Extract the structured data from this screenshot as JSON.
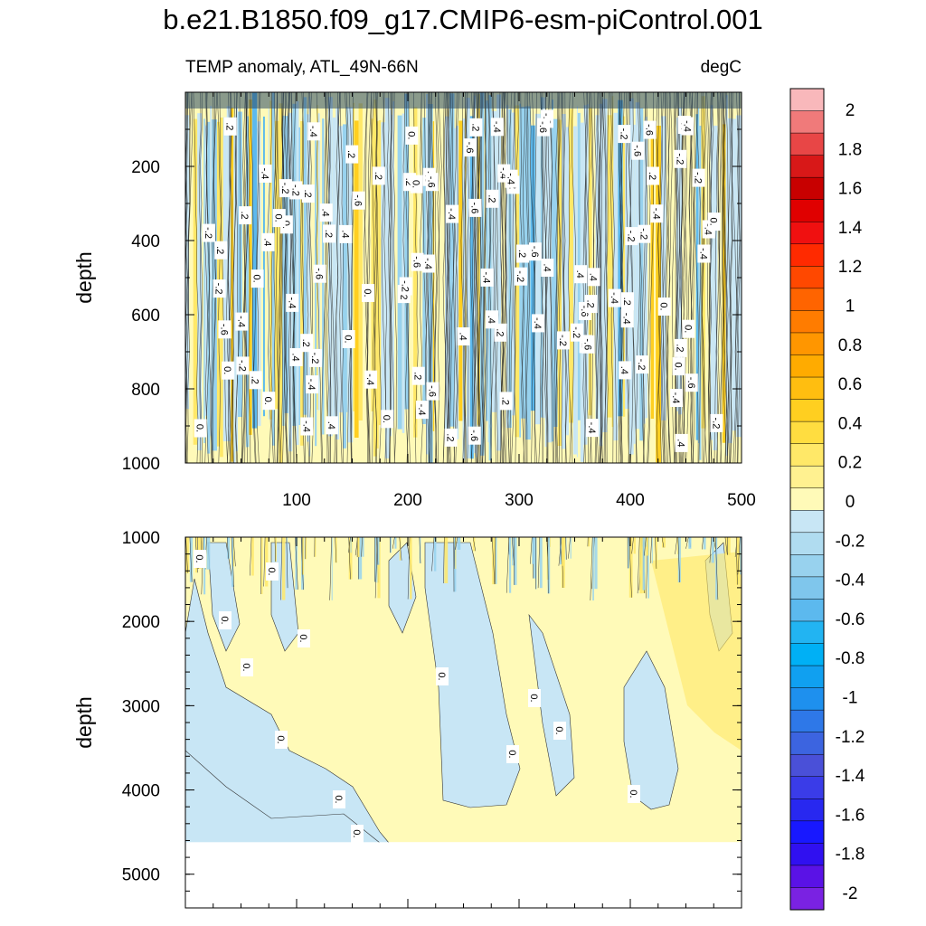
{
  "title": "b.e21.B1850.f09_g17.CMIP6-esm-piControl.001",
  "chart_data": {
    "type": "contour",
    "variable_label": "TEMP anomaly, ATL_49N-66N",
    "units": "degC",
    "ylabel": "depth",
    "xlim": [
      0,
      500
    ],
    "x_ticks": [
      100,
      200,
      300,
      400,
      500
    ],
    "panels": [
      {
        "name": "upper",
        "ylim": [
          0,
          1000
        ],
        "y_ticks": [
          200,
          400,
          600,
          800,
          1000
        ],
        "description_values": "contour labels shown",
        "contour_labels": [
          "-.4",
          "-.2",
          "0.",
          ".2",
          ".4",
          "-.6"
        ]
      },
      {
        "name": "lower",
        "ylim": [
          1000,
          5400
        ],
        "y_ticks": [
          1000,
          2000,
          3000,
          4000,
          5000
        ],
        "contour_labels": [
          "0."
        ]
      }
    ],
    "colorbar": {
      "levels": [
        "2",
        "1.8",
        "1.6",
        "1.4",
        "1.2",
        "1",
        "0.8",
        "0.6",
        "0.4",
        "0.2",
        "0",
        "-0.2",
        "-0.4",
        "-0.6",
        "-0.8",
        "-1",
        "-1.2",
        "-1.4",
        "-1.6",
        "-1.8",
        "-2"
      ],
      "colors": [
        "#f9b8bb",
        "#f07a7a",
        "#e84646",
        "#d81818",
        "#c80000",
        "#e00000",
        "#f01010",
        "#ff2a00",
        "#ff4800",
        "#ff6400",
        "#ff7c00",
        "#ff9600",
        "#ffab00",
        "#ffbe10",
        "#ffcf20",
        "#ffdd40",
        "#ffe868",
        "#fff190",
        "#fffab8",
        "#c8e6f5",
        "#b0dcf0",
        "#98d2ee",
        "#7fc6ec",
        "#5cb9ee",
        "#22b4f2",
        "#00b0f5",
        "#10a0f0",
        "#1e90ee",
        "#2e78e8",
        "#3c64e0",
        "#4a50d8",
        "#3a3ce8",
        "#2828f0",
        "#1818ff",
        "#3010f0",
        "#5a12e6",
        "#7a22e2"
      ]
    },
    "palette": {
      "warm_light": "#fffab8",
      "cool_light": "#c8e6f5",
      "warm_mid": "#ffe868",
      "warm_dark": "#ffcf20",
      "cool_mid": "#98d2ee",
      "cool_dark": "#5cb9ee"
    }
  }
}
